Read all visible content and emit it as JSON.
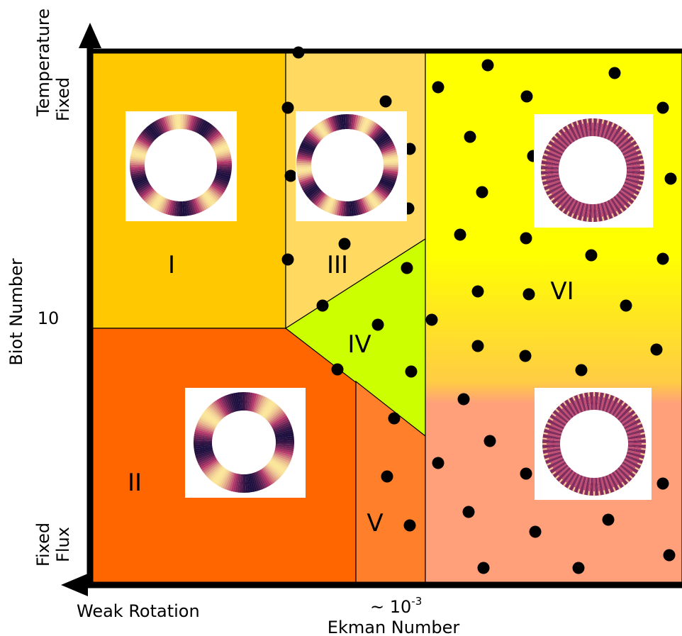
{
  "axes": {
    "x_title": "Ekman Number",
    "x_tick": "~ 10",
    "x_tick_exponent": "-3",
    "x_low_label": "Weak Rotation",
    "y_title": "Biot Number",
    "y_tick": "10",
    "y_top_label": [
      "Temperature",
      "Fixed"
    ],
    "y_bottom_label": [
      "Fixed",
      "Flux"
    ]
  },
  "regions": [
    {
      "id": "I",
      "label": "I",
      "color": "#ffc800"
    },
    {
      "id": "II",
      "label": "II",
      "color": "#ff6600"
    },
    {
      "id": "III",
      "label": "III",
      "color": "#ffd960"
    },
    {
      "id": "IV",
      "label": "IV",
      "color": "#ccff00"
    },
    {
      "id": "V",
      "label": "V",
      "color": "#ff7f2a"
    },
    {
      "id": "VI",
      "label": "VI",
      "color_top": "#ffff00",
      "color_mid": "#ffcc44",
      "color_bottom": "#ffa07a"
    }
  ],
  "insets": [
    {
      "region": "I",
      "pattern": "low-mode convection ring",
      "modes": 5
    },
    {
      "region": "III",
      "pattern": "low-mode convection ring",
      "modes": 6
    },
    {
      "region": "II",
      "pattern": "low-mode convection ring",
      "modes": 4
    },
    {
      "region": "VI-upper",
      "pattern": "high-mode convection ring",
      "modes": 60
    },
    {
      "region": "VI-lower",
      "pattern": "high-mode convection ring",
      "modes": 60
    }
  ],
  "colors": {
    "inset_dark": "#1c0f3e",
    "inset_mid": "#b5376b",
    "inset_bright": "#fbe69a",
    "dots": "#000000"
  }
}
